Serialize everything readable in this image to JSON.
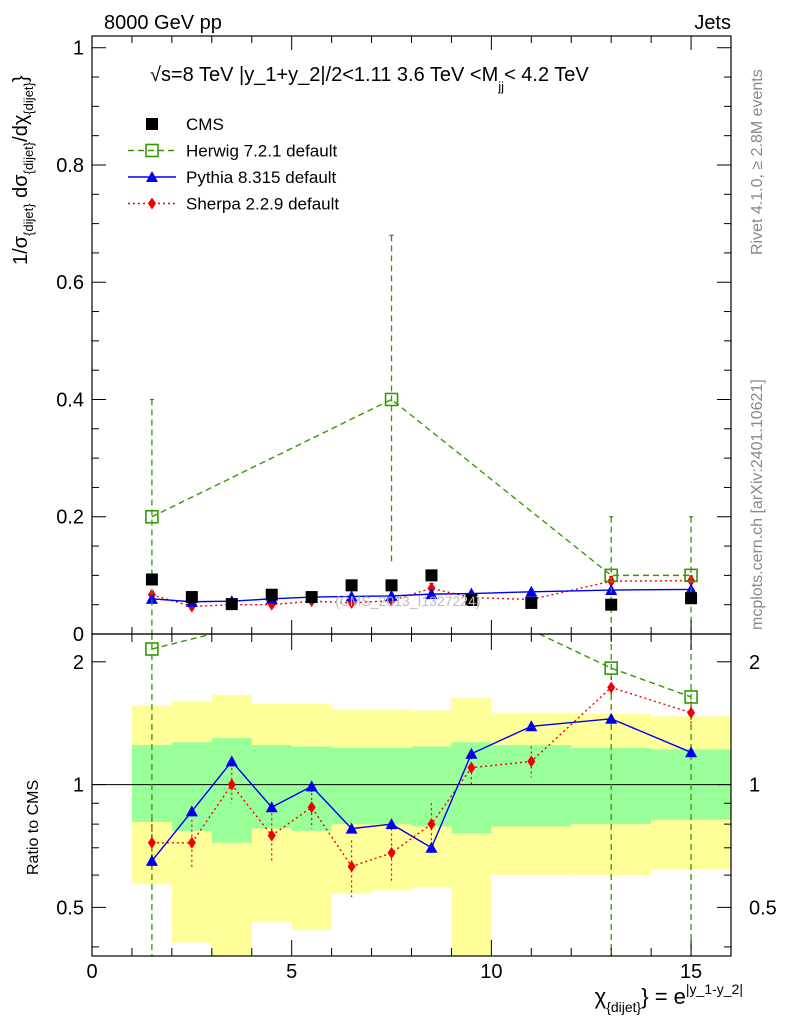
{
  "header": {
    "left": "8000 GeV pp",
    "right": "Jets"
  },
  "side_text": {
    "rivet": "Rivet 4.1.0, ≥ 2.8M events",
    "mcplots": "mcplots.cern.ch [arXiv:2401.10621]"
  },
  "chart_data": [
    {
      "type": "scatter",
      "panel": "main",
      "title": "√s=8 TeV |y_1+y_2|/2<1.11 3.6 TeV <M",
      "title_sub": "jj",
      "title_tail": "< 4.2 TeV",
      "ylabel": "1/σ_{dijet} dσ_{dijet}/dχ_{dijet}",
      "xlim": [
        0,
        16
      ],
      "ylim": [
        0,
        1.02
      ],
      "yticks": [
        0,
        0.2,
        0.4,
        0.6,
        0.8,
        1
      ],
      "ytick_labels": [
        "0",
        "0.2",
        "0.4",
        "0.6",
        "0.8",
        "1"
      ],
      "watermark": "(CMS_2013_I1327224)",
      "legend": [
        "CMS",
        "Herwig 7.2.1 default",
        "Pythia 8.315 default",
        "Sherpa 2.2.9 default"
      ],
      "series": [
        {
          "name": "CMS",
          "color": "#000000",
          "marker": "square",
          "x": [
            1.5,
            2.5,
            3.5,
            4.5,
            5.5,
            6.5,
            7.5,
            8.5,
            9.5,
            11,
            13,
            15
          ],
          "y": [
            0.093,
            0.063,
            0.051,
            0.067,
            0.063,
            0.083,
            0.083,
            0.1,
            0.058,
            0.053,
            0.05,
            0.061
          ]
        },
        {
          "name": "Herwig 7.2.1 default",
          "color": "#339900",
          "marker": "open-square",
          "line": "dashed",
          "x": [
            1.5,
            7.5,
            13,
            15
          ],
          "y": [
            0.2,
            0.4,
            0.1,
            0.1
          ],
          "err": [
            0.2,
            0.28,
            0.1,
            0.1
          ]
        },
        {
          "name": "Pythia 8.315 default",
          "color": "#0000ee",
          "marker": "triangle",
          "line": "solid",
          "x": [
            1.5,
            2.5,
            3.5,
            4.5,
            5.5,
            6.5,
            7.5,
            8.5,
            9.5,
            11,
            13,
            15
          ],
          "y": [
            0.06,
            0.055,
            0.056,
            0.06,
            0.063,
            0.064,
            0.065,
            0.068,
            0.069,
            0.072,
            0.075,
            0.076
          ],
          "err": [
            0.003,
            0.003,
            0.003,
            0.003,
            0.003,
            0.003,
            0.003,
            0.003,
            0.003,
            0.003,
            0.003,
            0.003
          ]
        },
        {
          "name": "Sherpa 2.2.9 default",
          "color": "#ee0000",
          "marker": "diamond",
          "line": "dotted",
          "x": [
            1.5,
            2.5,
            3.5,
            4.5,
            5.5,
            6.5,
            7.5,
            8.5,
            9.5,
            11,
            13,
            15
          ],
          "y": [
            0.067,
            0.047,
            0.05,
            0.05,
            0.056,
            0.053,
            0.057,
            0.078,
            0.062,
            0.059,
            0.09,
            0.091
          ],
          "err": [
            0.006,
            0.006,
            0.006,
            0.006,
            0.006,
            0.006,
            0.006,
            0.008,
            0.006,
            0.006,
            0.008,
            0.008
          ]
        }
      ]
    },
    {
      "type": "scatter",
      "panel": "ratio",
      "ylabel": "Ratio to CMS",
      "xlabel": "χ_{dijet} = e^{|y_1-y_2|}",
      "xlim": [
        0,
        16
      ],
      "ylim": [
        0.38,
        2.34
      ],
      "xticks": [
        0,
        5,
        10,
        15
      ],
      "xtick_labels": [
        "0",
        "5",
        "10",
        "15"
      ],
      "yticks": [
        0.5,
        1,
        2
      ],
      "ytick_labels": [
        "0.5",
        "1",
        "2"
      ],
      "bands": {
        "x_edges": [
          1,
          2,
          3,
          4,
          5,
          6,
          7,
          8,
          9,
          10,
          12,
          14,
          16
        ],
        "green": [
          [
            0.81,
            1.25
          ],
          [
            0.77,
            1.27
          ],
          [
            0.72,
            1.3
          ],
          [
            0.78,
            1.25
          ],
          [
            0.77,
            1.24
          ],
          [
            0.8,
            1.23
          ],
          [
            0.8,
            1.23
          ],
          [
            0.79,
            1.24
          ],
          [
            0.76,
            1.27
          ],
          [
            0.79,
            1.25
          ],
          [
            0.8,
            1.23
          ],
          [
            0.82,
            1.22
          ]
        ],
        "yellow": [
          [
            0.57,
            1.56
          ],
          [
            0.41,
            1.6
          ],
          [
            0.36,
            1.66
          ],
          [
            0.46,
            1.58
          ],
          [
            0.44,
            1.58
          ],
          [
            0.54,
            1.53
          ],
          [
            0.55,
            1.53
          ],
          [
            0.56,
            1.52
          ],
          [
            0.38,
            1.63
          ],
          [
            0.6,
            1.5
          ],
          [
            0.6,
            1.49
          ],
          [
            0.62,
            1.47
          ]
        ],
        "green_color": "#99ff99",
        "yellow_color": "#ffff99"
      },
      "series": [
        {
          "name": "Herwig 7.2.1 default",
          "color": "#339900",
          "x": [
            1.5,
            13,
            15
          ],
          "y": [
            2.15,
            1.93,
            1.64
          ],
          "pre_point_y": 2.47,
          "post_point_y": 2.4
        },
        {
          "name": "Pythia 8.315 default",
          "color": "#0000ee",
          "x": [
            1.5,
            2.5,
            3.5,
            4.5,
            5.5,
            6.5,
            7.5,
            8.5,
            9.5,
            11,
            13,
            15
          ],
          "y": [
            0.65,
            0.86,
            1.14,
            0.88,
            0.99,
            0.78,
            0.8,
            0.7,
            1.19,
            1.39,
            1.45,
            1.2
          ],
          "err": [
            0.02,
            0.02,
            0.03,
            0.02,
            0.03,
            0.02,
            0.02,
            0.02,
            0.03,
            0.03,
            0.03,
            0.03
          ]
        },
        {
          "name": "Sherpa 2.2.9 default",
          "color": "#ee0000",
          "x": [
            1.5,
            2.5,
            3.5,
            4.5,
            5.5,
            6.5,
            7.5,
            8.5,
            9.5,
            11,
            13,
            15
          ],
          "y": [
            0.72,
            0.72,
            1.0,
            0.75,
            0.88,
            0.63,
            0.68,
            0.8,
            1.1,
            1.14,
            1.73,
            1.5
          ],
          "err": [
            0.1,
            0.1,
            0.1,
            0.1,
            0.1,
            0.1,
            0.1,
            0.1,
            0.1,
            0.1,
            0.1,
            0.1
          ]
        }
      ]
    }
  ]
}
